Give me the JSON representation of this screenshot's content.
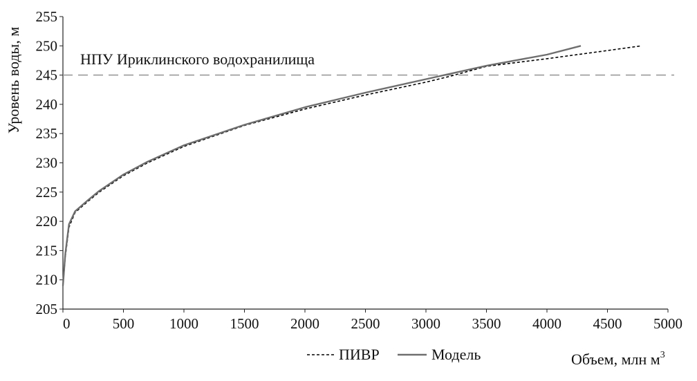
{
  "chart_data": {
    "type": "line",
    "xlabel": "Объем, млн м",
    "xlabel_sup": "3",
    "ylabel": "Уровень воды, м",
    "xlim": [
      0,
      5000
    ],
    "ylim": [
      205,
      255
    ],
    "xticks": [
      0,
      500,
      1000,
      1500,
      2000,
      2500,
      3000,
      3500,
      4000,
      4500,
      5000
    ],
    "yticks": [
      205,
      210,
      215,
      220,
      225,
      230,
      235,
      240,
      245,
      250,
      255
    ],
    "grid": false,
    "legend_position": "bottom-center",
    "reference_line": {
      "y": 245,
      "label": "НПУ Ириклинского водохранилища",
      "color": "#999999"
    },
    "series": [
      {
        "name": "ПИВР",
        "style": "dashed",
        "color": "#000000",
        "points": [
          [
            0,
            209
          ],
          [
            20,
            214
          ],
          [
            50,
            219
          ],
          [
            100,
            221.5
          ],
          [
            200,
            223.3
          ],
          [
            300,
            225
          ],
          [
            500,
            227.8
          ],
          [
            700,
            230
          ],
          [
            1000,
            232.8
          ],
          [
            1500,
            236.4
          ],
          [
            2000,
            239.2
          ],
          [
            2500,
            241.6
          ],
          [
            3000,
            243.8
          ],
          [
            3200,
            244.8
          ],
          [
            3500,
            246.5
          ],
          [
            4000,
            247.8
          ],
          [
            4500,
            249.2
          ],
          [
            4780,
            250
          ]
        ]
      },
      {
        "name": "Модель",
        "style": "solid",
        "color": "#6e6e6e",
        "points": [
          [
            0,
            209
          ],
          [
            20,
            214.5
          ],
          [
            50,
            219.5
          ],
          [
            100,
            221.7
          ],
          [
            200,
            223.5
          ],
          [
            300,
            225.2
          ],
          [
            500,
            228
          ],
          [
            700,
            230.2
          ],
          [
            1000,
            233
          ],
          [
            1500,
            236.5
          ],
          [
            2000,
            239.5
          ],
          [
            2500,
            242
          ],
          [
            3000,
            244.3
          ],
          [
            3500,
            246.6
          ],
          [
            4000,
            248.5
          ],
          [
            4280,
            250
          ]
        ]
      }
    ]
  }
}
